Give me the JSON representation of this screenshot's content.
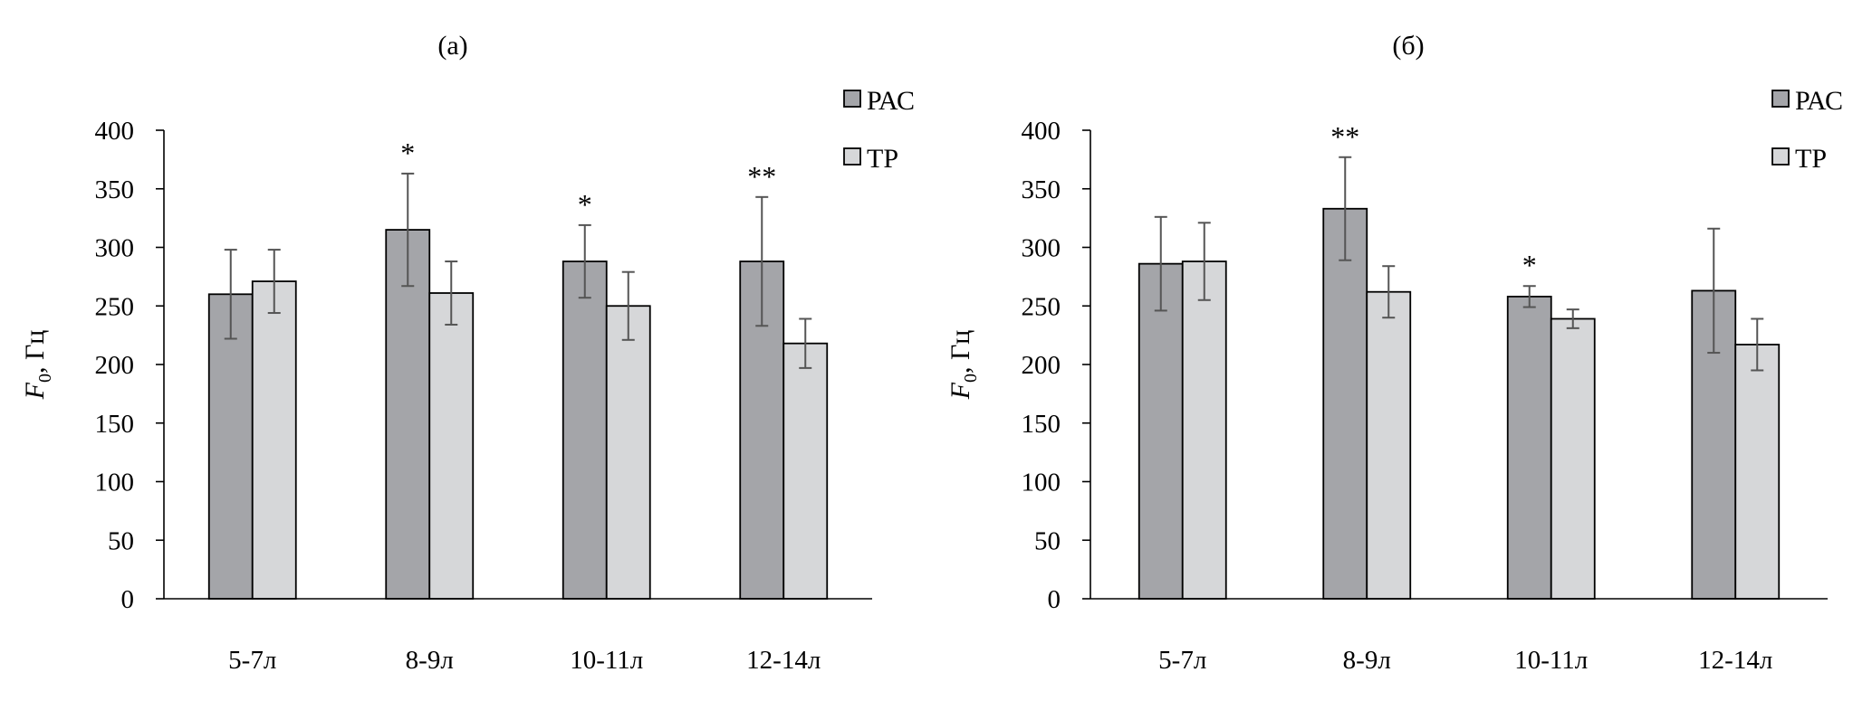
{
  "chart_data": [
    {
      "panel_label": "(a)",
      "type": "bar",
      "ylabel_main": "F",
      "ylabel_sub": "0",
      "ylabel_rest": ", Гц",
      "ylim": [
        0,
        400
      ],
      "yticks": [
        "0",
        "50",
        "100",
        "150",
        "200",
        "250",
        "300",
        "350",
        "400"
      ],
      "categories": [
        "5-7л",
        "8-9л",
        "10-11л",
        "12-14л"
      ],
      "series": [
        {
          "name": "РАС",
          "color": "#a4a5a9",
          "values": [
            260,
            315,
            288,
            288
          ],
          "errors": [
            38,
            48,
            31,
            55
          ]
        },
        {
          "name": "ТР",
          "color": "#d6d7d9",
          "values": [
            271,
            261,
            250,
            218
          ],
          "errors": [
            27,
            27,
            29,
            21
          ]
        }
      ],
      "annotations": [
        "",
        "*",
        "*",
        "**"
      ],
      "legend_position": "top-right"
    },
    {
      "panel_label": "(б)",
      "type": "bar",
      "ylabel_main": "F",
      "ylabel_sub": "0",
      "ylabel_rest": ", Гц",
      "ylim": [
        0,
        400
      ],
      "yticks": [
        "0",
        "50",
        "100",
        "150",
        "200",
        "250",
        "300",
        "350",
        "400"
      ],
      "categories": [
        "5-7л",
        "8-9л",
        "10-11л",
        "12-14л"
      ],
      "series": [
        {
          "name": "РАС",
          "color": "#a4a5a9",
          "values": [
            286,
            333,
            258,
            263
          ],
          "errors": [
            40,
            44,
            9,
            53
          ]
        },
        {
          "name": "ТР",
          "color": "#d6d7d9",
          "values": [
            288,
            262,
            239,
            217
          ],
          "errors": [
            33,
            22,
            8,
            22
          ]
        }
      ],
      "annotations": [
        "",
        "**",
        "*",
        ""
      ],
      "legend_position": "top-right"
    }
  ]
}
